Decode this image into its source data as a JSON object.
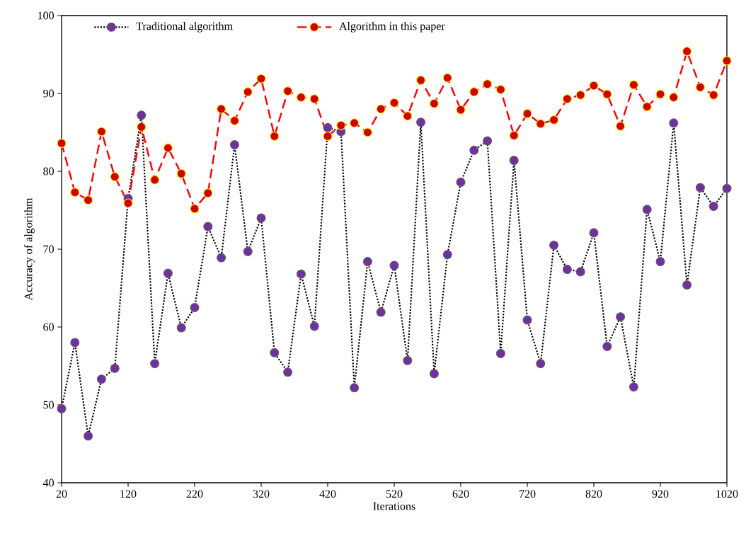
{
  "chart_data": {
    "type": "line",
    "xlabel": "Iterations",
    "ylabel": "Accuracy of algorithm",
    "x": [
      20,
      40,
      60,
      80,
      100,
      120,
      140,
      160,
      180,
      200,
      220,
      240,
      260,
      280,
      300,
      320,
      340,
      360,
      380,
      400,
      420,
      440,
      460,
      480,
      500,
      520,
      540,
      560,
      580,
      600,
      620,
      640,
      660,
      680,
      700,
      720,
      740,
      760,
      780,
      800,
      820,
      840,
      860,
      880,
      900,
      920,
      940,
      960,
      980,
      1000,
      1020
    ],
    "series": [
      {
        "name": "Traditional algorithm",
        "color": "#7030a0",
        "line_style": "dotted",
        "values": [
          49.5,
          58,
          46,
          53.3,
          54.7,
          76.5,
          87.2,
          55.3,
          66.9,
          59.9,
          62.5,
          72.9,
          68.9,
          83.4,
          69.7,
          74,
          56.7,
          54.2,
          66.8,
          60.1,
          85.6,
          85.1,
          52.2,
          68.4,
          61.9,
          67.9,
          55.7,
          86.3,
          54,
          69.3,
          78.6,
          82.7,
          83.9,
          56.6,
          81.4,
          60.9,
          55.3,
          70.5,
          67.4,
          67.1,
          72.1,
          57.5,
          61.3,
          52.3,
          75.1,
          68.4,
          86.2,
          65.4,
          77.9,
          75.5,
          77.8
        ]
      },
      {
        "name": "Algorithm in this paper",
        "color": "#d00000",
        "line_style": "dashed",
        "values": [
          83.6,
          77.3,
          76.3,
          85.1,
          79.3,
          75.9,
          85.7,
          78.9,
          83,
          79.7,
          75.2,
          77.2,
          88,
          86.5,
          90.2,
          91.9,
          84.5,
          90.3,
          89.5,
          89.3,
          84.5,
          85.9,
          86.2,
          85,
          88,
          88.8,
          87.1,
          91.7,
          88.7,
          92,
          87.9,
          90.2,
          91.2,
          90.5,
          84.6,
          87.4,
          86.1,
          86.6,
          89.3,
          89.8,
          91,
          89.9,
          85.8,
          91.1,
          88.3,
          89.9,
          89.5,
          95.4,
          90.8,
          89.8,
          94.2
        ]
      }
    ],
    "xlim": [
      20,
      1020
    ],
    "ylim": [
      40,
      100
    ],
    "xticks": [
      20,
      120,
      220,
      320,
      420,
      520,
      620,
      720,
      820,
      920,
      1020
    ],
    "yticks": [
      40,
      50,
      60,
      70,
      80,
      90,
      100
    ],
    "grid": false,
    "legend": "top left",
    "marker": "circle"
  }
}
